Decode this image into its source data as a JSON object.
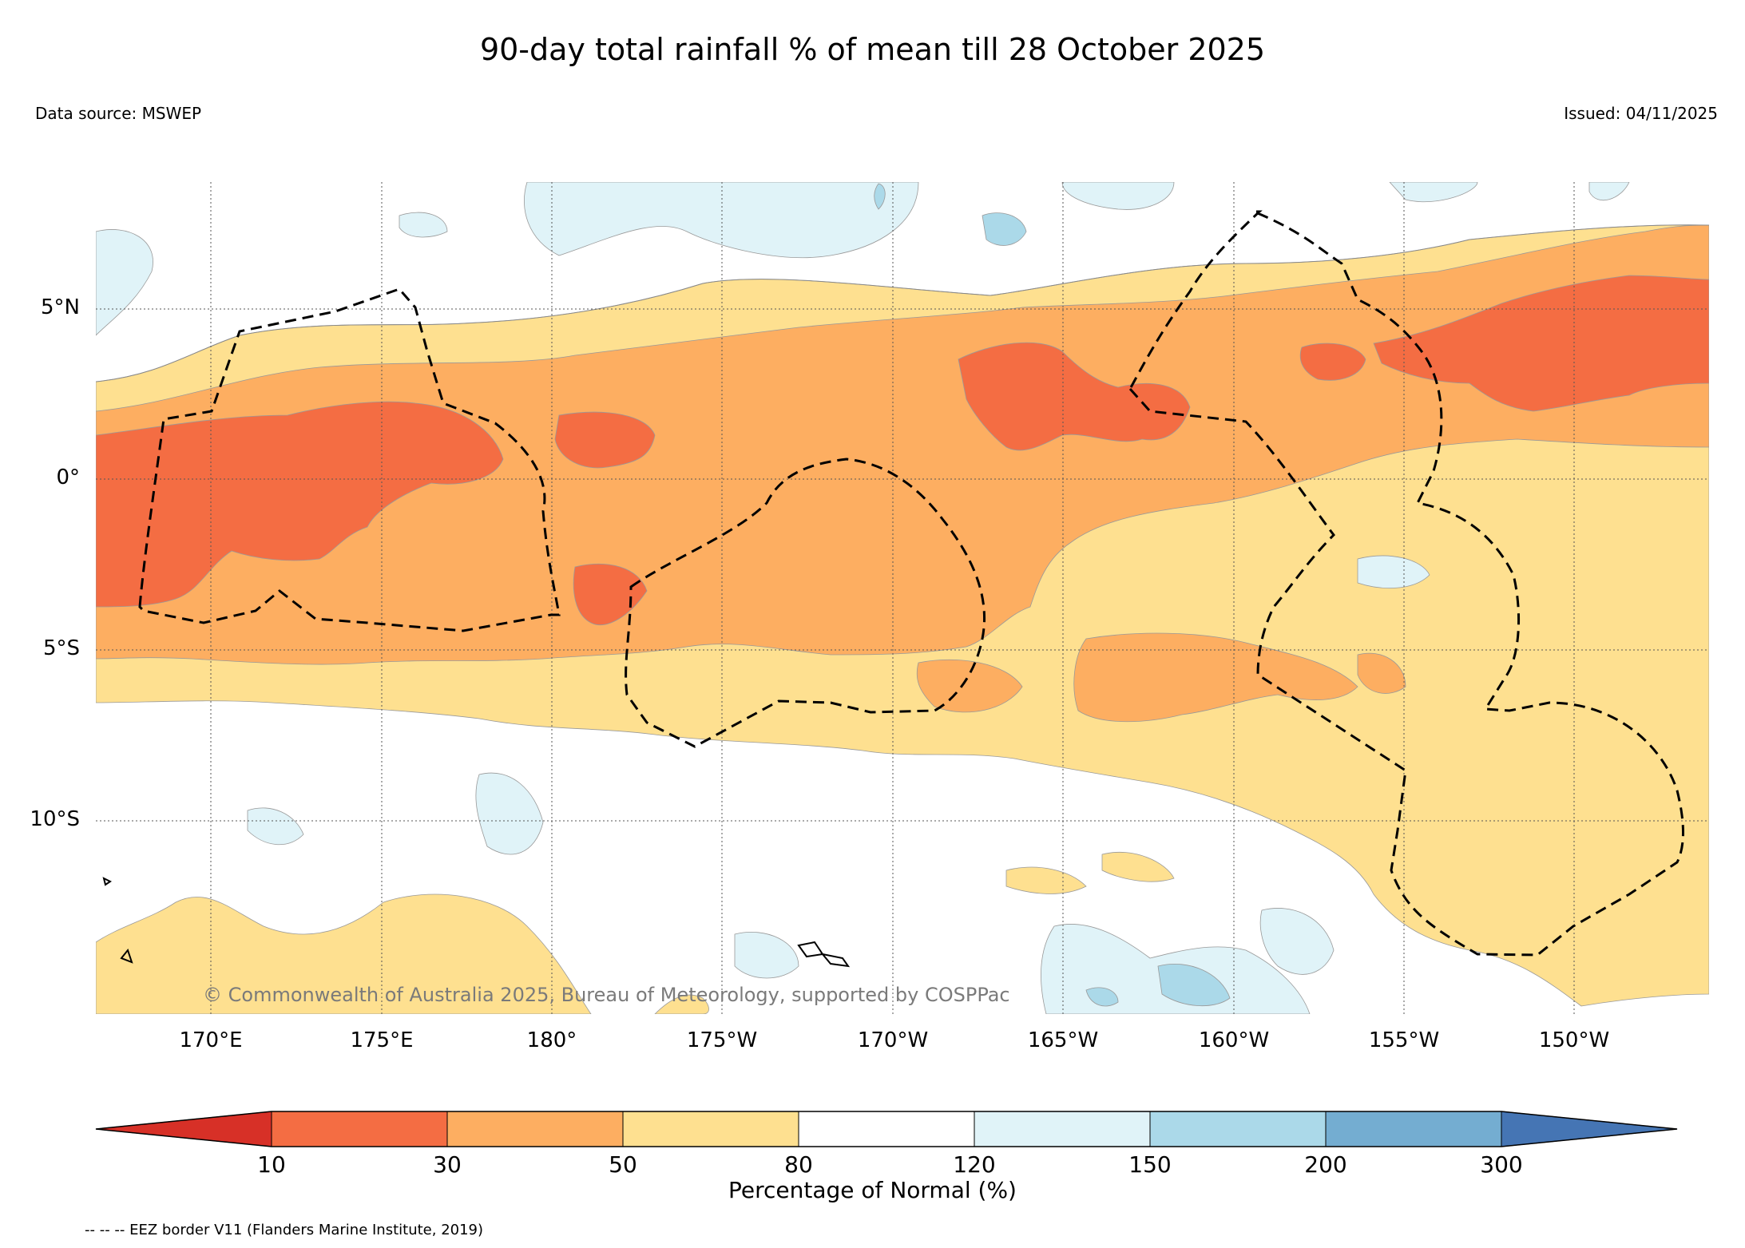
{
  "header": {
    "title": "90-day total rainfall % of mean till 28 October 2025",
    "data_source": "Data source: MSWEP",
    "issued": "Issued: 04/11/2025"
  },
  "map": {
    "lat_labels": [
      "5°N",
      "0°",
      "5°S",
      "10°S"
    ],
    "lon_labels": [
      "170°E",
      "175°E",
      "180°",
      "175°W",
      "170°W",
      "165°W",
      "160°W",
      "155°W",
      "150°W"
    ],
    "credit": "© Commonwealth of Australia 2025, Bureau of Meteorology, supported by COSPPac",
    "dominant_band": "30-50 % of normal along the equatorial belt",
    "border_style": "dashed"
  },
  "colorbar": {
    "title": "Percentage of Normal (%)",
    "ticks": [
      "10",
      "30",
      "50",
      "80",
      "120",
      "150",
      "200",
      "300"
    ],
    "colors": {
      "lt10": "#d73027",
      "c10_30": "#f46d43",
      "c30_50": "#fdae61",
      "c50_80": "#fee090",
      "c80_120": "#ffffff",
      "c120_150": "#e0f3f8",
      "c150_200": "#abd9e9",
      "c200_300": "#74add1",
      "gt300": "#4575b4"
    }
  },
  "footnote": "-- -- -- EEZ border V11 (Flanders Marine Institute, 2019)"
}
